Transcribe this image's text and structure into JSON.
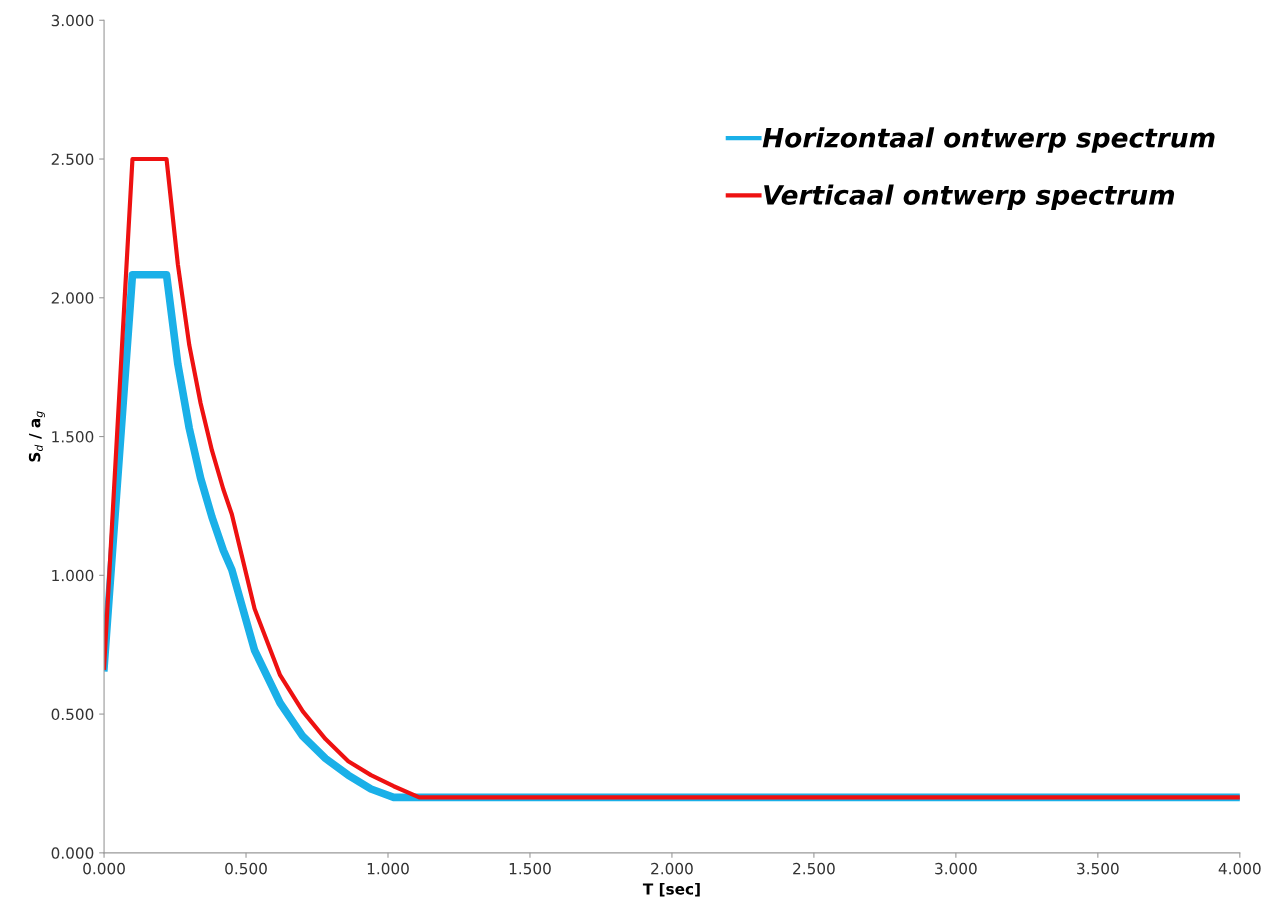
{
  "chart_data": {
    "type": "line",
    "xlabel": "T [sec]",
    "ylabel": "S$_{d}$ / a$_{g}$",
    "xlim": [
      0,
      4
    ],
    "ylim": [
      0,
      3
    ],
    "xticks": [
      {
        "value": 0,
        "label": "0.000"
      },
      {
        "value": 0.5,
        "label": "0.500"
      },
      {
        "value": 1,
        "label": "1.000"
      },
      {
        "value": 1.5,
        "label": "1.500"
      },
      {
        "value": 2,
        "label": "2.000"
      },
      {
        "value": 2.5,
        "label": "2.500"
      },
      {
        "value": 3,
        "label": "3.000"
      },
      {
        "value": 3.5,
        "label": "3.500"
      },
      {
        "value": 4,
        "label": "4.000"
      }
    ],
    "yticks": [
      {
        "value": 0,
        "label": "0.000"
      },
      {
        "value": 0.5,
        "label": "0.500"
      },
      {
        "value": 1,
        "label": "1.000"
      },
      {
        "value": 1.5,
        "label": "1.500"
      },
      {
        "value": 2,
        "label": "2.000"
      },
      {
        "value": 2.5,
        "label": "2.500"
      },
      {
        "value": 3,
        "label": "3.000"
      }
    ],
    "grid": false,
    "legend": "top right",
    "marker": "none",
    "line_style": "solid",
    "series": [
      {
        "name": "Horizontaal ontwerp spectrum",
        "color": "#1ab0e8",
        "x": [
          0,
          0.1,
          0.22,
          0.26,
          0.3,
          0.34,
          0.38,
          0.42,
          0.45,
          0.53,
          0.62,
          0.7,
          0.78,
          0.86,
          0.94,
          1.02,
          4.0
        ],
        "values": [
          0.667,
          2.083,
          2.083,
          1.76,
          1.53,
          1.35,
          1.21,
          1.09,
          1.02,
          0.73,
          0.54,
          0.42,
          0.34,
          0.28,
          0.23,
          0.2,
          0.2
        ]
      },
      {
        "name": "Verticaal ontwerp spectrum",
        "color": "#ee1111",
        "x": [
          0,
          0.1,
          0.22,
          0.26,
          0.3,
          0.34,
          0.38,
          0.42,
          0.45,
          0.53,
          0.62,
          0.7,
          0.78,
          0.86,
          0.94,
          1.02,
          1.11,
          4.0
        ],
        "values": [
          0.667,
          2.5,
          2.5,
          2.12,
          1.83,
          1.62,
          1.45,
          1.31,
          1.22,
          0.88,
          0.64,
          0.51,
          0.41,
          0.33,
          0.28,
          0.24,
          0.2,
          0.2
        ]
      }
    ]
  }
}
